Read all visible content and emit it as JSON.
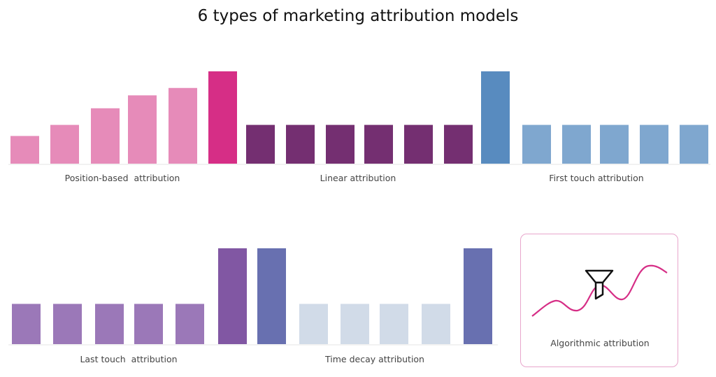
{
  "title": "6 types of marketing attribution models",
  "groups": [
    {
      "label": "Position-based  attribution",
      "values": [
        30,
        42,
        60,
        74,
        82,
        100
      ],
      "colors": [
        "#e68bb9",
        "#e68bb9",
        "#e68bb9",
        "#e68bb9",
        "#e68bb9",
        "#d62e86"
      ]
    },
    {
      "label": "Linear attribution",
      "values": [
        42,
        42,
        42,
        42,
        42,
        42
      ],
      "colors": [
        "#742f71",
        "#742f71",
        "#742f71",
        "#742f71",
        "#742f71",
        "#742f71"
      ]
    },
    {
      "label": "First touch attribution",
      "values": [
        100,
        42,
        42,
        42,
        42,
        42
      ],
      "colors": [
        "#588bbf",
        "#7fa7cf",
        "#7fa7cf",
        "#7fa7cf",
        "#7fa7cf",
        "#7fa7cf"
      ]
    },
    {
      "label": "Last touch  attribution",
      "values": [
        42,
        42,
        42,
        42,
        42,
        100
      ],
      "colors": [
        "#9b78b8",
        "#9b78b8",
        "#9b78b8",
        "#9b78b8",
        "#9b78b8",
        "#8157a3"
      ]
    },
    {
      "label": "Time decay attribution",
      "values": [
        100,
        42,
        42,
        42,
        42,
        100
      ],
      "colors": [
        "#6870b0",
        "#d1dbe8",
        "#d1dbe8",
        "#d1dbe8",
        "#d1dbe8",
        "#6870b0"
      ]
    }
  ],
  "algorithmic": {
    "label": "Algorithmic attribution",
    "line_color": "#d62e86",
    "icon": "funnel-icon"
  }
}
